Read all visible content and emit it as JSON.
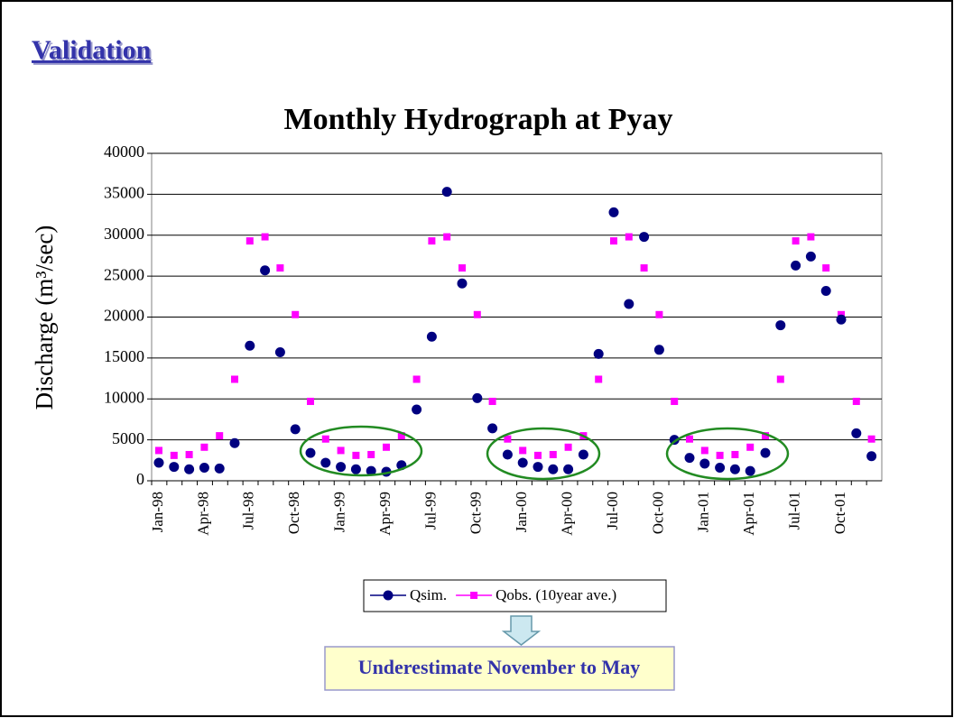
{
  "slide_title": "Validation",
  "callout": "Underestimate November to May",
  "chart_data": {
    "type": "line",
    "title": "Monthly Hydrograph at Pyay",
    "ylabel": "Discharge (m³/sec)",
    "categories": [
      "Jan-98",
      null,
      null,
      "Apr-98",
      null,
      null,
      "Jul-98",
      null,
      null,
      "Oct-98",
      null,
      null,
      "Jan-99",
      null,
      null,
      "Apr-99",
      null,
      null,
      "Jul-99",
      null,
      null,
      "Oct-99",
      null,
      null,
      "Jan-00",
      null,
      null,
      "Apr-00",
      null,
      null,
      "Jul-00",
      null,
      null,
      "Oct-00",
      null,
      null,
      "Jan-01",
      null,
      null,
      "Apr-01",
      null,
      null,
      "Jul-01",
      null,
      null,
      "Oct-01",
      null,
      null
    ],
    "series": [
      {
        "name": "Qsim.",
        "color": "#000080",
        "marker": "circle",
        "values": [
          2200,
          1700,
          1400,
          1600,
          1500,
          4600,
          16500,
          25700,
          15700,
          6300,
          3400,
          2200,
          1700,
          1400,
          1200,
          1100,
          1900,
          8700,
          17600,
          35300,
          24100,
          10100,
          6400,
          3200,
          2200,
          1700,
          1400,
          1400,
          3200,
          15500,
          32800,
          21600,
          29800,
          16000,
          5000,
          2800,
          2100,
          1600,
          1400,
          1200,
          3400,
          19000,
          26300,
          27400,
          23200,
          19700,
          5800,
          3000
        ]
      },
      {
        "name": "Qobs. (10year ave.)",
        "color": "#ff00ff",
        "marker": "square",
        "values": [
          3700,
          3100,
          3200,
          4100,
          5500,
          12400,
          29300,
          29800,
          26000,
          20300,
          9700,
          5100,
          3700,
          3100,
          3200,
          4100,
          5500,
          12400,
          29300,
          29800,
          26000,
          20300,
          9700,
          5100,
          3700,
          3100,
          3200,
          4100,
          5500,
          12400,
          29300,
          29800,
          26000,
          20300,
          9700,
          5100,
          3700,
          3100,
          3200,
          4100,
          5500,
          12400,
          29300,
          29800,
          26000,
          20300,
          9700,
          5100
        ]
      }
    ],
    "ylim": [
      0,
      40000
    ],
    "yticks": [
      0,
      5000,
      10000,
      15000,
      20000,
      25000,
      30000,
      35000,
      40000
    ],
    "grid": true
  }
}
